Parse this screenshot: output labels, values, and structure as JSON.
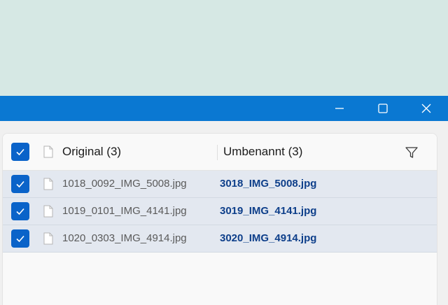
{
  "window": {
    "controls": {
      "minimize": "minimize-icon",
      "maximize": "maximize-icon",
      "close": "close-icon"
    }
  },
  "table": {
    "header": {
      "original_label": "Original (3)",
      "renamed_label": "Umbenannt (3)",
      "all_checked": true
    },
    "rows": [
      {
        "original": "1018_0092_IMG_5008.jpg",
        "renamed": "3018_IMG_5008.jpg",
        "checked": true
      },
      {
        "original": "1019_0101_IMG_4141.jpg",
        "renamed": "3019_IMG_4141.jpg",
        "checked": true
      },
      {
        "original": "1020_0303_IMG_4914.jpg",
        "renamed": "3020_IMG_4914.jpg",
        "checked": true
      }
    ]
  },
  "colors": {
    "titlebar": "#0a78d2",
    "checkbox": "#0a63c9",
    "row_background": "#e3e8f0",
    "renamed_text": "#0e3f8a",
    "desktop": "#d6e8e4"
  }
}
